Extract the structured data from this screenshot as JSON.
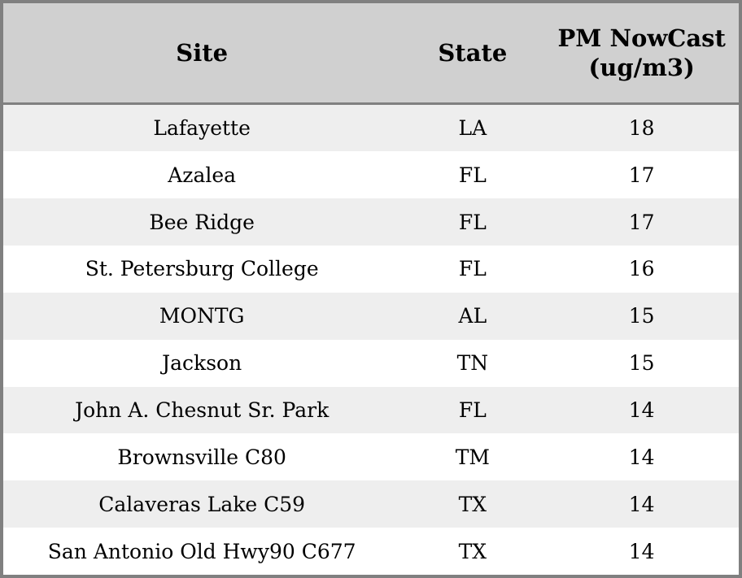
{
  "table": {
    "columns": [
      {
        "key": "site",
        "label": "Site"
      },
      {
        "key": "state",
        "label": "State"
      },
      {
        "key": "pm",
        "label": "PM NowCast (ug/m3)"
      }
    ],
    "rows": [
      {
        "site": "Lafayette",
        "state": "LA",
        "pm": "18"
      },
      {
        "site": "Azalea",
        "state": "FL",
        "pm": "17"
      },
      {
        "site": "Bee Ridge",
        "state": "FL",
        "pm": "17"
      },
      {
        "site": "St. Petersburg College",
        "state": "FL",
        "pm": "16"
      },
      {
        "site": "MONTG",
        "state": "AL",
        "pm": "15"
      },
      {
        "site": "Jackson",
        "state": "TN",
        "pm": "15"
      },
      {
        "site": "John A. Chesnut Sr. Park",
        "state": "FL",
        "pm": "14"
      },
      {
        "site": "Brownsville C80",
        "state": "TM",
        "pm": "14"
      },
      {
        "site": "Calaveras Lake C59",
        "state": "TX",
        "pm": "14"
      },
      {
        "site": "San Antonio Old Hwy90 C677",
        "state": "TX",
        "pm": "14"
      }
    ]
  },
  "colors": {
    "header_bg": "#d0d0d0",
    "border": "#808080",
    "row_alt_bg": "#eeeeee",
    "row_bg": "#ffffff",
    "text": "#000000"
  }
}
